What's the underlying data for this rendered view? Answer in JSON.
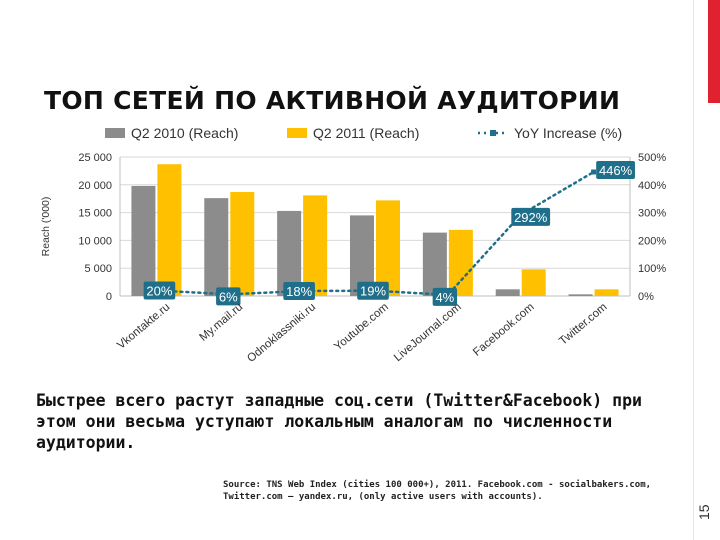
{
  "slide": {
    "title": "ТОП СЕТЕЙ ПО АКТИВНОЙ АУДИТОРИИ",
    "conclusion": "Быстрее всего растут западные соц.сети (Twitter&Facebook) при этом они весьма уступают локальным аналогам по численности аудитории.",
    "source": "Source: TNS Web Index (cities 100 000+), 2011. Facebook.com - socialbakers.com, Twitter.com – yandex.ru, (only active users with accounts).",
    "page_number": "15",
    "accent_color": "#e0212f"
  },
  "chart_data": {
    "type": "bar",
    "title": "",
    "xlabel": "",
    "ylabel": "Reach  ('000)",
    "ylim": [
      0,
      25000
    ],
    "y2lim": [
      0,
      500
    ],
    "yticks": [
      "0",
      "5 000",
      "10 000",
      "15 000",
      "20 000",
      "25 000"
    ],
    "y2ticks": [
      "0%",
      "100%",
      "200%",
      "300%",
      "400%",
      "500%"
    ],
    "categories": [
      "Vkontakte.ru",
      "My.mail.ru",
      "Odnoklassniki.ru",
      "Youtube.com",
      "LiveJournal.com",
      "Facebook.com",
      "Twitter.com"
    ],
    "series": [
      {
        "name": "Q2 2010 (Reach)",
        "type": "bar",
        "color": "#8c8c8c",
        "values": [
          19800,
          17600,
          15300,
          14500,
          11400,
          1200,
          300
        ]
      },
      {
        "name": "Q2  2011  (Reach)",
        "type": "bar",
        "color": "#ffc000",
        "values": [
          23700,
          18700,
          18100,
          17200,
          11900,
          4800,
          1200
        ]
      },
      {
        "name": "YoY Increase  (%)",
        "type": "line",
        "axis": "right",
        "color": "#1f6f8b",
        "values": [
          20,
          6,
          18,
          19,
          4,
          292,
          446
        ],
        "labels": [
          "20%",
          "6%",
          "18%",
          "19%",
          "4%",
          "292%",
          "446%"
        ]
      }
    ],
    "legend": "top",
    "grid": true
  }
}
